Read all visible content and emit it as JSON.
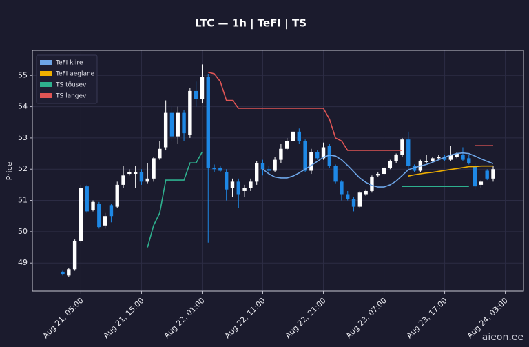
{
  "chart_data": {
    "type": "candlestick",
    "title": "LTC — 1h  |  TeFI  |  TS",
    "y_label": "Price",
    "watermark": "aieon.ee",
    "up_color": "#ffffff",
    "down_color": "#1e88e5",
    "grid": true,
    "legend": "upper left",
    "xlim": [
      -5,
      76
    ],
    "ylim": [
      48.1,
      55.8
    ],
    "yticks": [
      49,
      50,
      51,
      52,
      53,
      54,
      55
    ],
    "xticks": [
      {
        "value": 3,
        "label": "Aug 21, 05:00"
      },
      {
        "value": 13,
        "label": "Aug 21, 15:00"
      },
      {
        "value": 23,
        "label": "Aug 22, 01:00"
      },
      {
        "value": 33,
        "label": "Aug 22, 11:00"
      },
      {
        "value": 43,
        "label": "Aug 22, 21:00"
      },
      {
        "value": 53,
        "label": "Aug 23, 07:00"
      },
      {
        "value": 63,
        "label": "Aug 23, 17:00"
      },
      {
        "value": 73,
        "label": "Aug 24, 03:00"
      }
    ],
    "open": [
      48.72,
      48.6,
      48.8,
      49.7,
      51.45,
      50.7,
      50.9,
      50.2,
      50.85,
      50.8,
      51.5,
      51.85,
      51.85,
      51.9,
      51.6,
      51.7,
      52.35,
      52.7,
      53.8,
      53.05,
      53.8,
      53.1,
      54.5,
      54.25,
      54.95,
      52.05,
      52.05,
      51.9,
      51.4,
      51.6,
      51.3,
      51.4,
      51.6,
      52.2,
      52.0,
      51.95,
      52.3,
      52.65,
      52.9,
      53.2,
      52.9,
      51.95,
      52.55,
      52.35,
      52.75,
      52.1,
      51.6,
      51.2,
      51.05,
      50.8,
      51.2,
      51.3,
      51.8,
      51.85,
      52.05,
      52.25,
      52.45,
      52.95,
      52.1,
      51.95,
      52.25,
      52.25,
      52.35,
      52.4,
      52.3,
      52.4,
      52.45,
      52.35,
      52.1,
      51.5,
      51.95,
      51.7
    ],
    "high": [
      48.75,
      48.85,
      49.75,
      51.5,
      51.5,
      51.0,
      50.95,
      50.6,
      50.9,
      51.6,
      52.1,
      52.0,
      52.1,
      52.0,
      52.2,
      52.4,
      52.9,
      54.2,
      54.0,
      54.0,
      53.9,
      54.6,
      54.8,
      55.35,
      55.05,
      52.15,
      52.1,
      52.0,
      51.7,
      51.7,
      51.5,
      51.7,
      52.25,
      52.3,
      52.1,
      52.4,
      52.8,
      53.0,
      53.4,
      53.3,
      52.95,
      52.65,
      52.6,
      52.85,
      52.8,
      52.15,
      51.65,
      51.3,
      51.1,
      51.3,
      51.35,
      51.8,
      51.9,
      52.1,
      52.3,
      52.5,
      53.0,
      53.2,
      52.15,
      52.3,
      52.45,
      52.4,
      52.45,
      52.45,
      52.75,
      52.55,
      52.7,
      52.45,
      52.2,
      51.65,
      52.0,
      52.1
    ],
    "low": [
      48.6,
      48.55,
      48.75,
      49.65,
      50.6,
      50.65,
      50.1,
      50.1,
      50.3,
      50.75,
      51.4,
      51.8,
      51.4,
      51.5,
      51.55,
      51.6,
      52.3,
      52.6,
      52.9,
      52.8,
      52.9,
      53.0,
      54.0,
      54.1,
      49.65,
      51.9,
      51.9,
      51.0,
      51.1,
      50.75,
      51.1,
      51.3,
      51.5,
      51.8,
      51.85,
      51.9,
      52.2,
      52.6,
      52.85,
      52.8,
      51.9,
      51.85,
      52.3,
      52.3,
      52.05,
      51.55,
      51.0,
      51.0,
      50.65,
      50.75,
      51.15,
      51.25,
      51.75,
      51.8,
      52.0,
      52.2,
      52.4,
      52.0,
      51.9,
      51.9,
      52.2,
      52.2,
      52.3,
      52.25,
      52.25,
      52.35,
      52.25,
      52.15,
      51.35,
      51.4,
      51.65,
      51.6
    ],
    "close": [
      48.65,
      48.8,
      49.7,
      51.4,
      50.65,
      50.95,
      50.15,
      50.5,
      50.5,
      51.5,
      51.8,
      51.9,
      51.9,
      51.6,
      51.7,
      52.35,
      52.65,
      53.8,
      53.05,
      53.8,
      53.15,
      54.5,
      54.25,
      54.95,
      52.05,
      52.0,
      51.95,
      51.35,
      51.6,
      51.2,
      51.4,
      51.6,
      52.2,
      52.0,
      51.95,
      52.3,
      52.65,
      52.9,
      53.2,
      52.9,
      51.95,
      52.55,
      52.35,
      52.7,
      52.1,
      51.6,
      51.2,
      51.05,
      50.8,
      51.25,
      51.3,
      51.75,
      51.85,
      52.05,
      52.25,
      52.45,
      52.95,
      52.1,
      51.95,
      52.25,
      52.25,
      52.35,
      52.4,
      52.3,
      52.45,
      52.5,
      52.3,
      52.2,
      51.45,
      51.6,
      51.7,
      52.0
    ],
    "series": [
      {
        "name": "TeFI kiire",
        "color": "#6ea6e8",
        "values": [
          null,
          null,
          null,
          null,
          null,
          null,
          null,
          null,
          null,
          null,
          null,
          null,
          null,
          null,
          null,
          null,
          null,
          null,
          null,
          null,
          null,
          null,
          null,
          null,
          null,
          null,
          null,
          null,
          null,
          null,
          null,
          null,
          null,
          52.0,
          51.85,
          51.75,
          51.72,
          51.72,
          51.78,
          51.88,
          52.0,
          52.12,
          52.25,
          52.38,
          52.45,
          52.42,
          52.3,
          52.12,
          51.92,
          51.72,
          51.58,
          51.48,
          51.43,
          51.43,
          51.5,
          51.62,
          51.8,
          51.98,
          52.05,
          52.1,
          52.15,
          52.22,
          52.3,
          52.38,
          52.45,
          52.5,
          52.52,
          52.5,
          52.42,
          52.33,
          52.25,
          52.18
        ]
      },
      {
        "name": "TeFI aeglane",
        "color": "#f0b000",
        "values": [
          null,
          null,
          null,
          null,
          null,
          null,
          null,
          null,
          null,
          null,
          null,
          null,
          null,
          null,
          null,
          null,
          null,
          null,
          null,
          null,
          null,
          null,
          null,
          null,
          null,
          null,
          null,
          null,
          null,
          null,
          null,
          null,
          null,
          null,
          null,
          null,
          null,
          null,
          null,
          null,
          null,
          null,
          null,
          null,
          null,
          null,
          null,
          null,
          null,
          null,
          null,
          null,
          null,
          null,
          null,
          null,
          null,
          51.78,
          51.82,
          51.85,
          51.88,
          51.9,
          51.93,
          51.96,
          51.99,
          52.02,
          52.05,
          52.08,
          52.08,
          52.1,
          52.1,
          52.1
        ]
      },
      {
        "name": "TS tõusev",
        "color": "#2eb08e",
        "values": [
          null,
          null,
          null,
          null,
          null,
          null,
          null,
          null,
          null,
          null,
          null,
          null,
          null,
          null,
          49.5,
          50.2,
          50.6,
          51.65,
          51.65,
          51.65,
          51.65,
          52.2,
          52.2,
          52.55,
          null,
          null,
          null,
          null,
          null,
          null,
          null,
          null,
          null,
          null,
          null,
          null,
          null,
          null,
          null,
          null,
          null,
          null,
          null,
          null,
          null,
          null,
          null,
          null,
          null,
          null,
          null,
          null,
          null,
          null,
          null,
          null,
          51.45,
          51.45,
          51.45,
          51.45,
          51.45,
          51.45,
          51.45,
          51.45,
          51.45,
          51.45,
          51.45,
          51.45,
          null,
          null,
          null,
          null
        ]
      },
      {
        "name": "TS langev",
        "color": "#e05555",
        "values": [
          null,
          null,
          null,
          null,
          null,
          null,
          null,
          null,
          null,
          null,
          null,
          null,
          null,
          null,
          null,
          null,
          null,
          null,
          null,
          null,
          null,
          null,
          null,
          null,
          55.1,
          55.05,
          54.8,
          54.2,
          54.2,
          53.95,
          53.95,
          53.95,
          53.95,
          53.95,
          53.95,
          53.95,
          53.95,
          53.95,
          53.95,
          53.95,
          53.95,
          53.95,
          53.95,
          53.95,
          53.6,
          53.0,
          52.9,
          52.6,
          52.6,
          52.6,
          52.6,
          52.6,
          52.6,
          52.6,
          52.6,
          52.6,
          52.6,
          null,
          null,
          null,
          null,
          null,
          null,
          null,
          null,
          null,
          null,
          null,
          52.75,
          52.75,
          52.75,
          52.75
        ]
      }
    ]
  }
}
